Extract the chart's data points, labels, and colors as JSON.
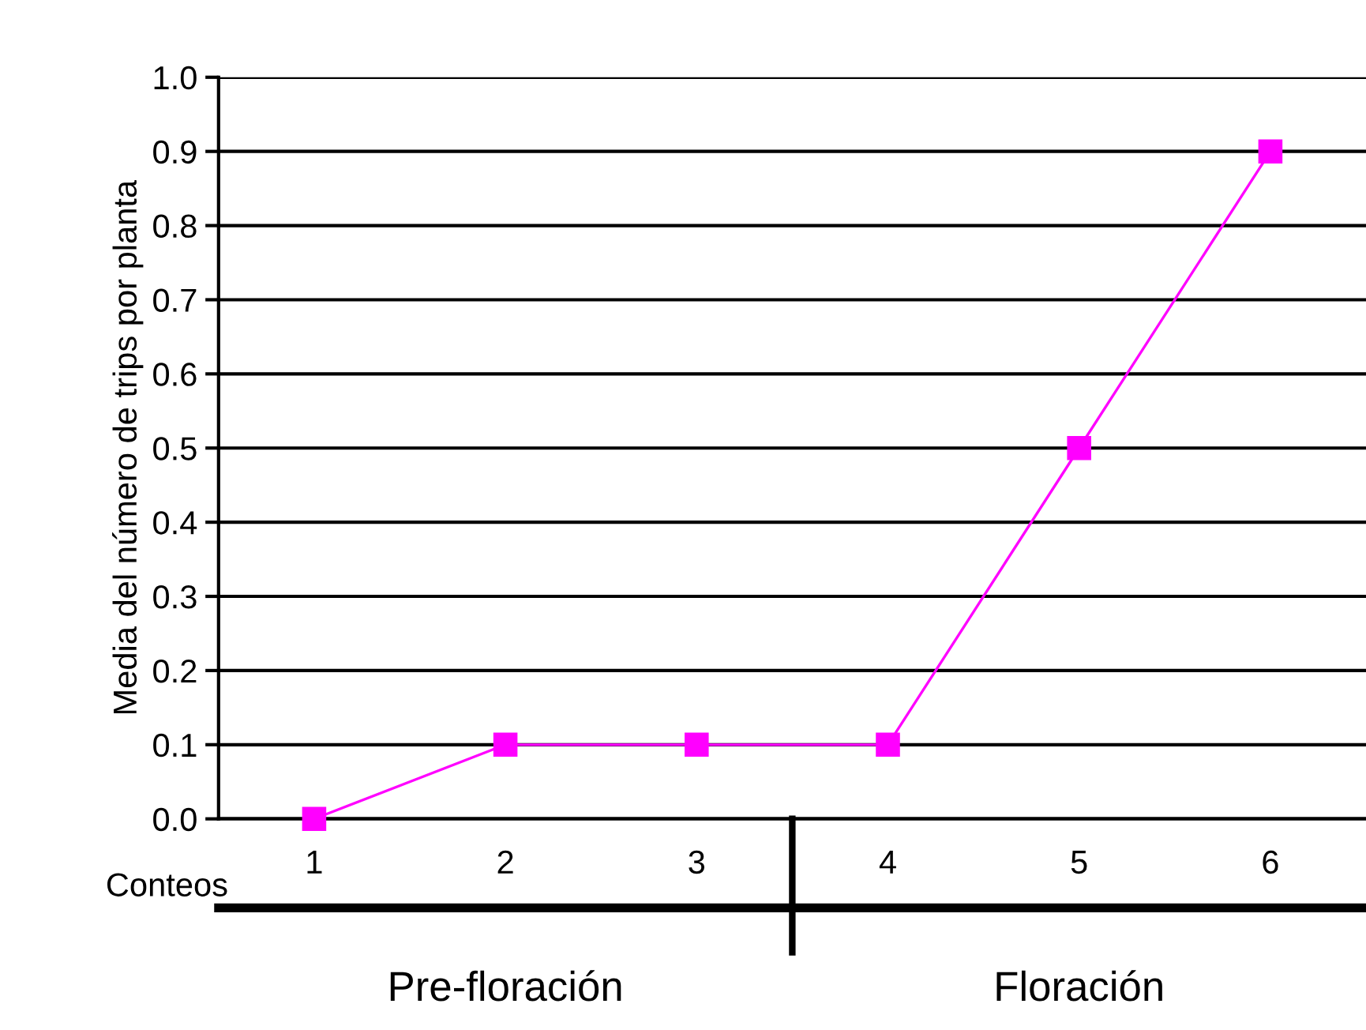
{
  "chart_data": {
    "type": "line",
    "categories": [
      "1",
      "2",
      "3",
      "4",
      "5",
      "6"
    ],
    "series": [
      {
        "color": "#ff00ff",
        "values": [
          0.0,
          0.1,
          0.1,
          0.1,
          0.5,
          0.9
        ]
      }
    ],
    "ylabel": "Media del número de trips por planta",
    "xlabel": "Conteos",
    "ylim": [
      0,
      1.0
    ],
    "yticks": [
      {
        "value": 0,
        "label": "0.0"
      },
      {
        "value": 0.1,
        "label": "0.1"
      },
      {
        "value": 0.2,
        "label": "0.2"
      },
      {
        "value": 0.3,
        "label": "0.3"
      },
      {
        "value": 0.4,
        "label": "0.4"
      },
      {
        "value": 0.5,
        "label": "0.5"
      },
      {
        "value": 0.6,
        "label": "0.6"
      },
      {
        "value": 0.7,
        "label": "0.7"
      },
      {
        "value": 0.8,
        "label": "0.8"
      },
      {
        "value": 0.9,
        "label": "0.9"
      },
      {
        "value": 1.0,
        "label": "1.0"
      }
    ],
    "annotations": [
      "Pre-floración",
      "Floración"
    ],
    "grid": "y",
    "marker": "square",
    "line_style": "solid",
    "legend": false
  }
}
